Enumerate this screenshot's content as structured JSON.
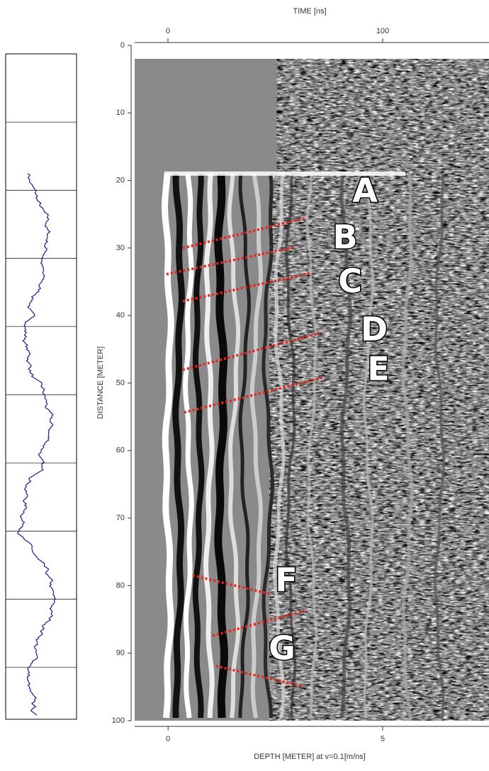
{
  "chart_data": {
    "type": "radargram",
    "title": "TIME [ns]",
    "xlabel": "DEPTH [METER] at v=0.1[m/ns]",
    "ylabel": "DISTANCE [METER]",
    "x2lim": [
      -15.5,
      149.5
    ],
    "x2ticks": [
      0,
      100
    ],
    "xlim": [
      -0.78,
      7.48
    ],
    "xticks": [
      0,
      5
    ],
    "ylim": [
      0,
      100
    ],
    "yticks": [
      0,
      10,
      20,
      30,
      40,
      50,
      60,
      70,
      80,
      90,
      100
    ],
    "annotations": [
      "A",
      "B",
      "C",
      "D",
      "E",
      "F",
      "G"
    ],
    "interpretation_color": "#e8261c"
  }
}
